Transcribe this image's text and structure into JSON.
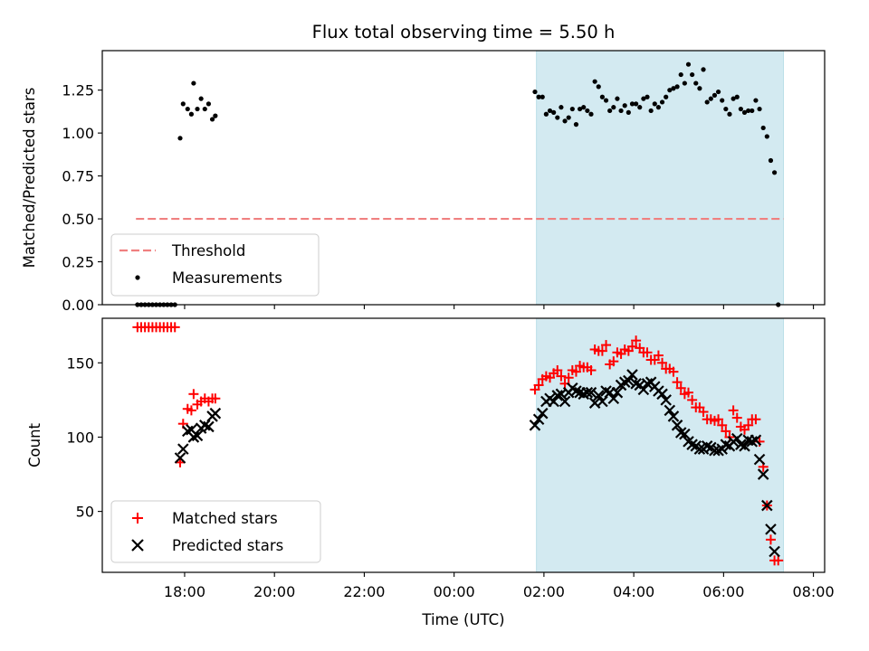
{
  "chart_data": [
    {
      "type": "scatter",
      "title": "Flux total observing time = 5.50 h",
      "xlabel": "",
      "ylabel": "Matched/Predicted stars",
      "ylim": [
        0.0,
        1.48
      ],
      "yticks": [
        "0.00",
        "0.25",
        "0.50",
        "0.75",
        "1.00",
        "1.25"
      ],
      "xticks_shown": false,
      "shaded_region": {
        "x_start": "01:50",
        "x_end": "07:20",
        "color": "#d3eaf1"
      },
      "threshold": {
        "name": "Threshold",
        "y": 0.5,
        "x_start": "16:55",
        "x_end": "07:20",
        "color": "#f08080",
        "style": "dashed"
      },
      "legend": {
        "placement": "lower-left",
        "entries": [
          "Threshold",
          "Measurements"
        ]
      },
      "series": [
        {
          "name": "Measurements",
          "color": "#000000",
          "marker": "dot",
          "points": [
            [
              "16:57",
              0.0
            ],
            [
              "17:02",
              0.0
            ],
            [
              "17:07",
              0.0
            ],
            [
              "17:12",
              0.0
            ],
            [
              "17:17",
              0.0
            ],
            [
              "17:22",
              0.0
            ],
            [
              "17:27",
              0.0
            ],
            [
              "17:32",
              0.0
            ],
            [
              "17:37",
              0.0
            ],
            [
              "17:42",
              0.0
            ],
            [
              "17:47",
              0.0
            ],
            [
              "17:54",
              0.97
            ],
            [
              "17:58",
              1.17
            ],
            [
              "18:04",
              1.14
            ],
            [
              "18:09",
              1.11
            ],
            [
              "18:12",
              1.29
            ],
            [
              "18:17",
              1.14
            ],
            [
              "18:22",
              1.2
            ],
            [
              "18:27",
              1.14
            ],
            [
              "18:32",
              1.17
            ],
            [
              "18:37",
              1.08
            ],
            [
              "18:41",
              1.1
            ],
            [
              "01:48",
              1.24
            ],
            [
              "01:53",
              1.21
            ],
            [
              "01:58",
              1.21
            ],
            [
              "02:03",
              1.11
            ],
            [
              "02:08",
              1.13
            ],
            [
              "02:13",
              1.12
            ],
            [
              "02:18",
              1.09
            ],
            [
              "02:23",
              1.15
            ],
            [
              "02:28",
              1.07
            ],
            [
              "02:33",
              1.09
            ],
            [
              "02:38",
              1.14
            ],
            [
              "02:43",
              1.05
            ],
            [
              "02:48",
              1.14
            ],
            [
              "02:53",
              1.15
            ],
            [
              "02:58",
              1.13
            ],
            [
              "03:03",
              1.11
            ],
            [
              "03:08",
              1.3
            ],
            [
              "03:13",
              1.27
            ],
            [
              "03:18",
              1.21
            ],
            [
              "03:23",
              1.19
            ],
            [
              "03:28",
              1.13
            ],
            [
              "03:33",
              1.15
            ],
            [
              "03:38",
              1.2
            ],
            [
              "03:43",
              1.13
            ],
            [
              "03:48",
              1.16
            ],
            [
              "03:53",
              1.12
            ],
            [
              "03:58",
              1.17
            ],
            [
              "04:03",
              1.17
            ],
            [
              "04:08",
              1.15
            ],
            [
              "04:13",
              1.2
            ],
            [
              "04:18",
              1.21
            ],
            [
              "04:23",
              1.13
            ],
            [
              "04:28",
              1.17
            ],
            [
              "04:33",
              1.15
            ],
            [
              "04:38",
              1.18
            ],
            [
              "04:43",
              1.21
            ],
            [
              "04:48",
              1.25
            ],
            [
              "04:53",
              1.26
            ],
            [
              "04:58",
              1.27
            ],
            [
              "05:03",
              1.34
            ],
            [
              "05:08",
              1.29
            ],
            [
              "05:13",
              1.4
            ],
            [
              "05:18",
              1.34
            ],
            [
              "05:23",
              1.29
            ],
            [
              "05:28",
              1.26
            ],
            [
              "05:33",
              1.37
            ],
            [
              "05:38",
              1.18
            ],
            [
              "05:43",
              1.2
            ],
            [
              "05:48",
              1.22
            ],
            [
              "05:53",
              1.24
            ],
            [
              "05:58",
              1.19
            ],
            [
              "06:03",
              1.14
            ],
            [
              "06:08",
              1.11
            ],
            [
              "06:13",
              1.2
            ],
            [
              "06:18",
              1.21
            ],
            [
              "06:23",
              1.14
            ],
            [
              "06:28",
              1.12
            ],
            [
              "06:33",
              1.13
            ],
            [
              "06:38",
              1.13
            ],
            [
              "06:43",
              1.19
            ],
            [
              "06:48",
              1.14
            ],
            [
              "06:53",
              1.03
            ],
            [
              "06:58",
              0.98
            ],
            [
              "07:03",
              0.84
            ],
            [
              "07:08",
              0.77
            ],
            [
              "07:13",
              0.0
            ]
          ]
        }
      ]
    },
    {
      "type": "scatter",
      "title": "",
      "xlabel": "Time (UTC)",
      "ylabel": "Count",
      "ylim": [
        9,
        180
      ],
      "yticks": [
        "50",
        "100",
        "150"
      ],
      "xticks": [
        "18:00",
        "20:00",
        "22:00",
        "00:00",
        "02:00",
        "04:00",
        "06:00",
        "08:00"
      ],
      "shaded_region": {
        "x_start": "01:50",
        "x_end": "07:20",
        "color": "#d3eaf1"
      },
      "legend": {
        "placement": "lower-left",
        "entries": [
          "Matched stars",
          "Predicted stars"
        ]
      },
      "series": [
        {
          "name": "Matched stars",
          "color": "#ff0000",
          "marker": "plus",
          "points": [
            [
              "16:57",
              174
            ],
            [
              "17:02",
              174
            ],
            [
              "17:07",
              174
            ],
            [
              "17:12",
              174
            ],
            [
              "17:17",
              174
            ],
            [
              "17:22",
              174
            ],
            [
              "17:27",
              174
            ],
            [
              "17:32",
              174
            ],
            [
              "17:37",
              174
            ],
            [
              "17:42",
              174
            ],
            [
              "17:47",
              174
            ],
            [
              "17:54",
              83
            ],
            [
              "17:58",
              109
            ],
            [
              "18:04",
              119
            ],
            [
              "18:09",
              118
            ],
            [
              "18:12",
              129
            ],
            [
              "18:17",
              122
            ],
            [
              "18:22",
              124
            ],
            [
              "18:27",
              126
            ],
            [
              "18:32",
              124
            ],
            [
              "18:37",
              126
            ],
            [
              "18:41",
              126
            ],
            [
              "01:48",
              132
            ],
            [
              "01:53",
              135
            ],
            [
              "01:58",
              139
            ],
            [
              "02:03",
              141
            ],
            [
              "02:08",
              140
            ],
            [
              "02:13",
              143
            ],
            [
              "02:18",
              145
            ],
            [
              "02:23",
              141
            ],
            [
              "02:28",
              136
            ],
            [
              "02:33",
              140
            ],
            [
              "02:38",
              145
            ],
            [
              "02:43",
              144
            ],
            [
              "02:48",
              148
            ],
            [
              "02:53",
              147
            ],
            [
              "02:58",
              147
            ],
            [
              "03:03",
              145
            ],
            [
              "03:08",
              159
            ],
            [
              "03:13",
              158
            ],
            [
              "03:18",
              158
            ],
            [
              "03:23",
              162
            ],
            [
              "03:28",
              149
            ],
            [
              "03:33",
              151
            ],
            [
              "03:38",
              157
            ],
            [
              "03:43",
              156
            ],
            [
              "03:48",
              159
            ],
            [
              "03:53",
              158
            ],
            [
              "03:58",
              161
            ],
            [
              "04:03",
              165
            ],
            [
              "04:08",
              160
            ],
            [
              "04:13",
              157
            ],
            [
              "04:18",
              157
            ],
            [
              "04:23",
              152
            ],
            [
              "04:28",
              152
            ],
            [
              "04:33",
              155
            ],
            [
              "04:38",
              150
            ],
            [
              "04:43",
              146
            ],
            [
              "04:48",
              146
            ],
            [
              "04:53",
              144
            ],
            [
              "04:58",
              137
            ],
            [
              "05:03",
              133
            ],
            [
              "05:08",
              129
            ],
            [
              "05:13",
              130
            ],
            [
              "05:18",
              125
            ],
            [
              "05:23",
              120
            ],
            [
              "05:28",
              120
            ],
            [
              "05:33",
              117
            ],
            [
              "05:38",
              112
            ],
            [
              "05:43",
              112
            ],
            [
              "05:48",
              111
            ],
            [
              "05:53",
              112
            ],
            [
              "05:58",
              108
            ],
            [
              "06:03",
              104
            ],
            [
              "06:08",
              100
            ],
            [
              "06:13",
              118
            ],
            [
              "06:18",
              113
            ],
            [
              "06:23",
              107
            ],
            [
              "06:28",
              105
            ],
            [
              "06:33",
              108
            ],
            [
              "06:38",
              112
            ],
            [
              "06:43",
              112
            ],
            [
              "06:48",
              97
            ],
            [
              "06:53",
              80
            ],
            [
              "06:58",
              54
            ],
            [
              "07:03",
              31
            ],
            [
              "07:08",
              17
            ],
            [
              "07:13",
              17
            ]
          ]
        },
        {
          "name": "Predicted stars",
          "color": "#000000",
          "marker": "x",
          "points": [
            [
              "17:54",
              86
            ],
            [
              "17:58",
              92
            ],
            [
              "18:04",
              104
            ],
            [
              "18:09",
              105
            ],
            [
              "18:12",
              100
            ],
            [
              "18:17",
              101
            ],
            [
              "18:22",
              106
            ],
            [
              "18:27",
              108
            ],
            [
              "18:32",
              107
            ],
            [
              "18:37",
              114
            ],
            [
              "18:41",
              116
            ],
            [
              "01:48",
              108
            ],
            [
              "01:53",
              112
            ],
            [
              "01:58",
              116
            ],
            [
              "02:03",
              124
            ],
            [
              "02:08",
              126
            ],
            [
              "02:13",
              124
            ],
            [
              "02:18",
              128
            ],
            [
              "02:23",
              129
            ],
            [
              "02:28",
              124
            ],
            [
              "02:33",
              130
            ],
            [
              "02:38",
              133
            ],
            [
              "02:43",
              131
            ],
            [
              "02:48",
              130
            ],
            [
              "02:53",
              129
            ],
            [
              "02:58",
              130
            ],
            [
              "03:03",
              130
            ],
            [
              "03:08",
              123
            ],
            [
              "03:13",
              128
            ],
            [
              "03:18",
              124
            ],
            [
              "03:23",
              131
            ],
            [
              "03:28",
              130
            ],
            [
              "03:33",
              126
            ],
            [
              "03:38",
              130
            ],
            [
              "03:43",
              135
            ],
            [
              "03:48",
              137
            ],
            [
              "03:53",
              138
            ],
            [
              "03:58",
              142
            ],
            [
              "04:03",
              136
            ],
            [
              "04:08",
              135
            ],
            [
              "04:13",
              132
            ],
            [
              "04:18",
              136
            ],
            [
              "04:23",
              137
            ],
            [
              "04:28",
              134
            ],
            [
              "04:33",
              131
            ],
            [
              "04:38",
              129
            ],
            [
              "04:43",
              125
            ],
            [
              "04:48",
              118
            ],
            [
              "04:53",
              114
            ],
            [
              "04:58",
              108
            ],
            [
              "05:03",
              103
            ],
            [
              "05:08",
              102
            ],
            [
              "05:13",
              97
            ],
            [
              "05:18",
              95
            ],
            [
              "05:23",
              94
            ],
            [
              "05:28",
              92
            ],
            [
              "05:33",
              92
            ],
            [
              "05:38",
              94
            ],
            [
              "05:43",
              93
            ],
            [
              "05:48",
              91
            ],
            [
              "05:53",
              91
            ],
            [
              "05:58",
              92
            ],
            [
              "06:03",
              95
            ],
            [
              "06:08",
              94
            ],
            [
              "06:13",
              97
            ],
            [
              "06:18",
              99
            ],
            [
              "06:23",
              95
            ],
            [
              "06:28",
              94
            ],
            [
              "06:33",
              98
            ],
            [
              "06:38",
              97
            ],
            [
              "06:43",
              98
            ],
            [
              "06:48",
              85
            ],
            [
              "06:53",
              75
            ],
            [
              "06:58",
              54
            ],
            [
              "07:03",
              38
            ],
            [
              "07:08",
              23
            ]
          ]
        }
      ]
    }
  ]
}
